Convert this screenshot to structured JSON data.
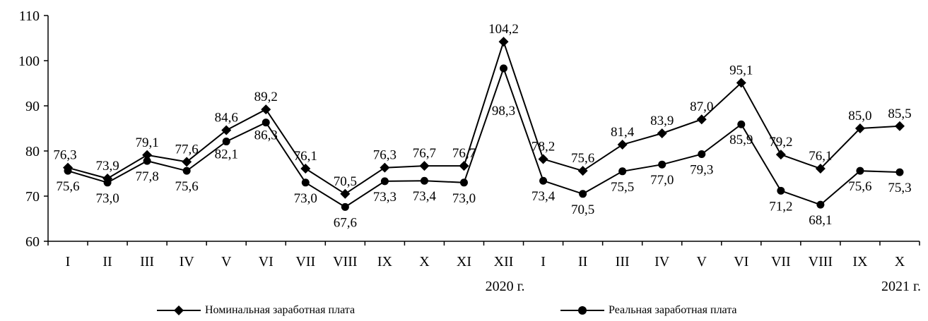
{
  "chart_data": {
    "type": "line",
    "categories": [
      "I",
      "II",
      "III",
      "IV",
      "V",
      "VI",
      "VII",
      "VIII",
      "IX",
      "X",
      "XI",
      "XII",
      "I",
      "II",
      "III",
      "IV",
      "V",
      "VI",
      "VII",
      "VIII",
      "IX",
      "X"
    ],
    "year_labels": [
      {
        "after_index": 11,
        "text": "2020  г."
      },
      {
        "after_index": 21,
        "text": "2021  г."
      }
    ],
    "ylim": [
      60,
      110
    ],
    "yticks": [
      60,
      70,
      80,
      90,
      100,
      110
    ],
    "series": [
      {
        "name": "Номинальная заработная плата",
        "marker": "diamond",
        "values": [
          76.3,
          73.9,
          79.1,
          77.6,
          84.6,
          89.2,
          76.1,
          70.5,
          76.3,
          76.7,
          76.7,
          104.2,
          78.2,
          75.6,
          81.4,
          83.9,
          87.0,
          95.1,
          79.2,
          76.1,
          85.0,
          85.5
        ],
        "labels": [
          "76,3",
          "73,9",
          "79,1",
          "77,6",
          "84,6",
          "89,2",
          "76,1",
          "70,5",
          "76,3",
          "76,7",
          "76,7",
          "104,2",
          "78,2",
          "75,6",
          "81,4",
          "83,9",
          "87,0",
          "95,1",
          "79,2",
          "76,1",
          "85,0",
          "85,5"
        ]
      },
      {
        "name": "Реальная заработная плата",
        "marker": "circle",
        "values": [
          75.6,
          73.0,
          77.8,
          75.6,
          82.1,
          86.3,
          73.0,
          67.6,
          73.3,
          73.4,
          73.0,
          98.3,
          73.4,
          70.5,
          75.5,
          77.0,
          79.3,
          85.9,
          71.2,
          68.1,
          75.6,
          75.3
        ],
        "labels": [
          "75,6",
          "73,0",
          "77,8",
          "75,6",
          "82,1",
          "86,3",
          "73,0",
          "67,6",
          "73,3",
          "73,4",
          "73,0",
          "98,3",
          "73,4",
          "70,5",
          "75,5",
          "77,0",
          "79,3",
          "85,9",
          "71,2",
          "68,1",
          "75,6",
          "75,3"
        ]
      }
    ],
    "grid": false,
    "legend": "bottom",
    "line_color": "#000000"
  }
}
